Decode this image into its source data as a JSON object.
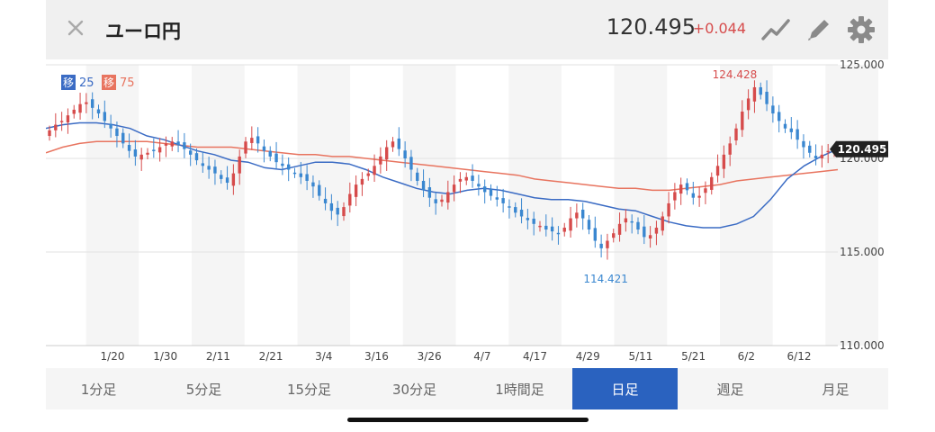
{
  "header": {
    "title": "ユーロ円",
    "price": "120.495",
    "change": "+0.044",
    "icons": [
      "close-icon",
      "line-chart-icon",
      "pencil-icon",
      "gear-icon"
    ]
  },
  "legend": {
    "ma_short_label": "移",
    "ma_short_value": "25",
    "ma_long_label": "移",
    "ma_long_value": "75"
  },
  "colors": {
    "up": "#d64b4b",
    "down": "#3a87d0",
    "ma_short": "#3a6bc4",
    "ma_long": "#e8745f",
    "active_tab": "#2a62bf"
  },
  "tabs": [
    {
      "label": "1分足",
      "active": false
    },
    {
      "label": "5分足",
      "active": false
    },
    {
      "label": "15分足",
      "active": false
    },
    {
      "label": "30分足",
      "active": false
    },
    {
      "label": "1時間足",
      "active": false
    },
    {
      "label": "日足",
      "active": true
    },
    {
      "label": "週足",
      "active": false
    },
    {
      "label": "月足",
      "active": false
    }
  ],
  "chart_data": {
    "type": "candlestick",
    "ylim": [
      110.0,
      125.0
    ],
    "y_ticks": [
      "125.000",
      "120.000",
      "115.000",
      "110.000"
    ],
    "x_ticks": [
      "1/20",
      "1/30",
      "2/11",
      "2/21",
      "3/4",
      "3/16",
      "3/26",
      "4/7",
      "4/17",
      "4/29",
      "5/11",
      "5/21",
      "6/2",
      "6/12"
    ],
    "max_label": "124.428",
    "min_label": "114.421",
    "current_label": "120.495",
    "current_value": 120.495,
    "closes": [
      121.5,
      121.8,
      122.0,
      122.3,
      122.6,
      122.9,
      123.0,
      122.7,
      122.4,
      122.0,
      121.6,
      121.2,
      120.8,
      120.4,
      120.1,
      120.2,
      120.3,
      120.4,
      120.6,
      120.8,
      120.9,
      120.7,
      120.5,
      120.2,
      119.9,
      119.6,
      119.4,
      119.2,
      118.9,
      118.7,
      119.2,
      120.1,
      120.9,
      121.1,
      120.8,
      120.4,
      120.1,
      119.8,
      119.6,
      119.4,
      119.2,
      119.0,
      118.8,
      118.5,
      118.0,
      117.6,
      117.2,
      117.0,
      117.4,
      118.1,
      118.6,
      118.9,
      119.2,
      119.6,
      120.1,
      120.6,
      120.9,
      120.5,
      120.0,
      119.4,
      118.8,
      118.3,
      117.9,
      117.6,
      117.8,
      118.2,
      118.6,
      118.9,
      119.0,
      118.8,
      118.5,
      118.2,
      118.0,
      117.8,
      117.6,
      117.4,
      117.1,
      116.9,
      116.7,
      116.5,
      116.4,
      116.2,
      116.1,
      116.0,
      116.3,
      116.8,
      117.1,
      116.8,
      116.2,
      115.6,
      115.2,
      115.6,
      116.0,
      116.5,
      116.8,
      116.6,
      116.2,
      115.8,
      115.9,
      116.3,
      116.9,
      117.6,
      118.2,
      118.6,
      118.3,
      117.9,
      118.0,
      118.4,
      119.0,
      119.6,
      120.2,
      120.8,
      121.6,
      122.5,
      123.2,
      123.8,
      123.4,
      122.9,
      122.4,
      122.0,
      121.6,
      121.4,
      121.0,
      120.6,
      120.3,
      120.0,
      120.2,
      120.4,
      120.495
    ],
    "ma_short": [
      121.6,
      121.8,
      121.9,
      121.9,
      121.8,
      121.6,
      121.2,
      121.0,
      120.7,
      120.4,
      120.2,
      119.9,
      119.8,
      119.5,
      119.4,
      119.6,
      119.8,
      119.8,
      119.7,
      119.4,
      119.0,
      118.7,
      118.4,
      118.2,
      118.1,
      118.3,
      118.4,
      118.3,
      118.1,
      117.9,
      117.8,
      117.8,
      117.7,
      117.5,
      117.3,
      117.2,
      116.9,
      116.6,
      116.4,
      116.3,
      116.3,
      116.5,
      116.9,
      117.8,
      118.9,
      119.6,
      120.1,
      120.5
    ],
    "ma_long": [
      120.3,
      120.6,
      120.8,
      120.9,
      120.9,
      120.9,
      120.9,
      120.8,
      120.7,
      120.6,
      120.6,
      120.6,
      120.5,
      120.4,
      120.3,
      120.2,
      120.2,
      120.1,
      120.1,
      120.0,
      119.9,
      119.8,
      119.7,
      119.6,
      119.5,
      119.4,
      119.3,
      119.2,
      119.1,
      118.9,
      118.8,
      118.7,
      118.6,
      118.5,
      118.4,
      118.4,
      118.3,
      118.3,
      118.4,
      118.5,
      118.6,
      118.8,
      118.9,
      119.0,
      119.1,
      119.2,
      119.3,
      119.4
    ]
  }
}
